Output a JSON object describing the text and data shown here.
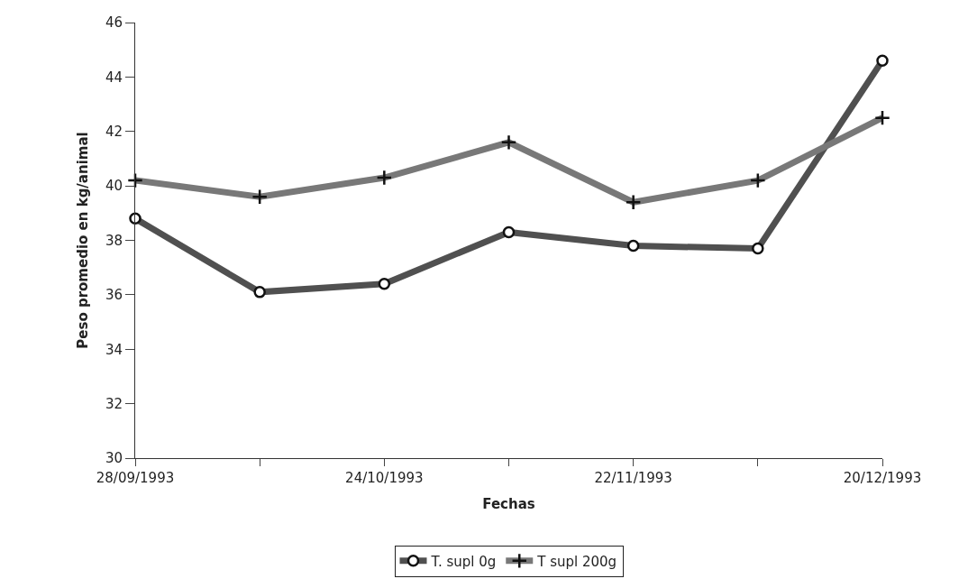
{
  "chart_data": {
    "type": "line",
    "xlabel": "Fechas",
    "ylabel": "Peso promedio en kg/animal",
    "categories": [
      "28/09/1993",
      null,
      "24/10/1993",
      null,
      "22/11/1993",
      null,
      "20/12/1993"
    ],
    "series": [
      {
        "name": "T. supl 0g",
        "color": "#505050",
        "marker": "circle",
        "values": [
          38.8,
          36.1,
          36.4,
          38.3,
          37.8,
          37.7,
          44.6
        ]
      },
      {
        "name": "T supl 200g",
        "color": "#787878",
        "marker": "cross",
        "values": [
          40.2,
          39.6,
          40.3,
          41.6,
          39.4,
          40.2,
          42.5
        ]
      }
    ],
    "ylim": [
      30,
      46
    ],
    "yticks": [
      30,
      32,
      34,
      36,
      38,
      40,
      42,
      44,
      46
    ],
    "legend": "bottom",
    "line_style": "solid"
  }
}
